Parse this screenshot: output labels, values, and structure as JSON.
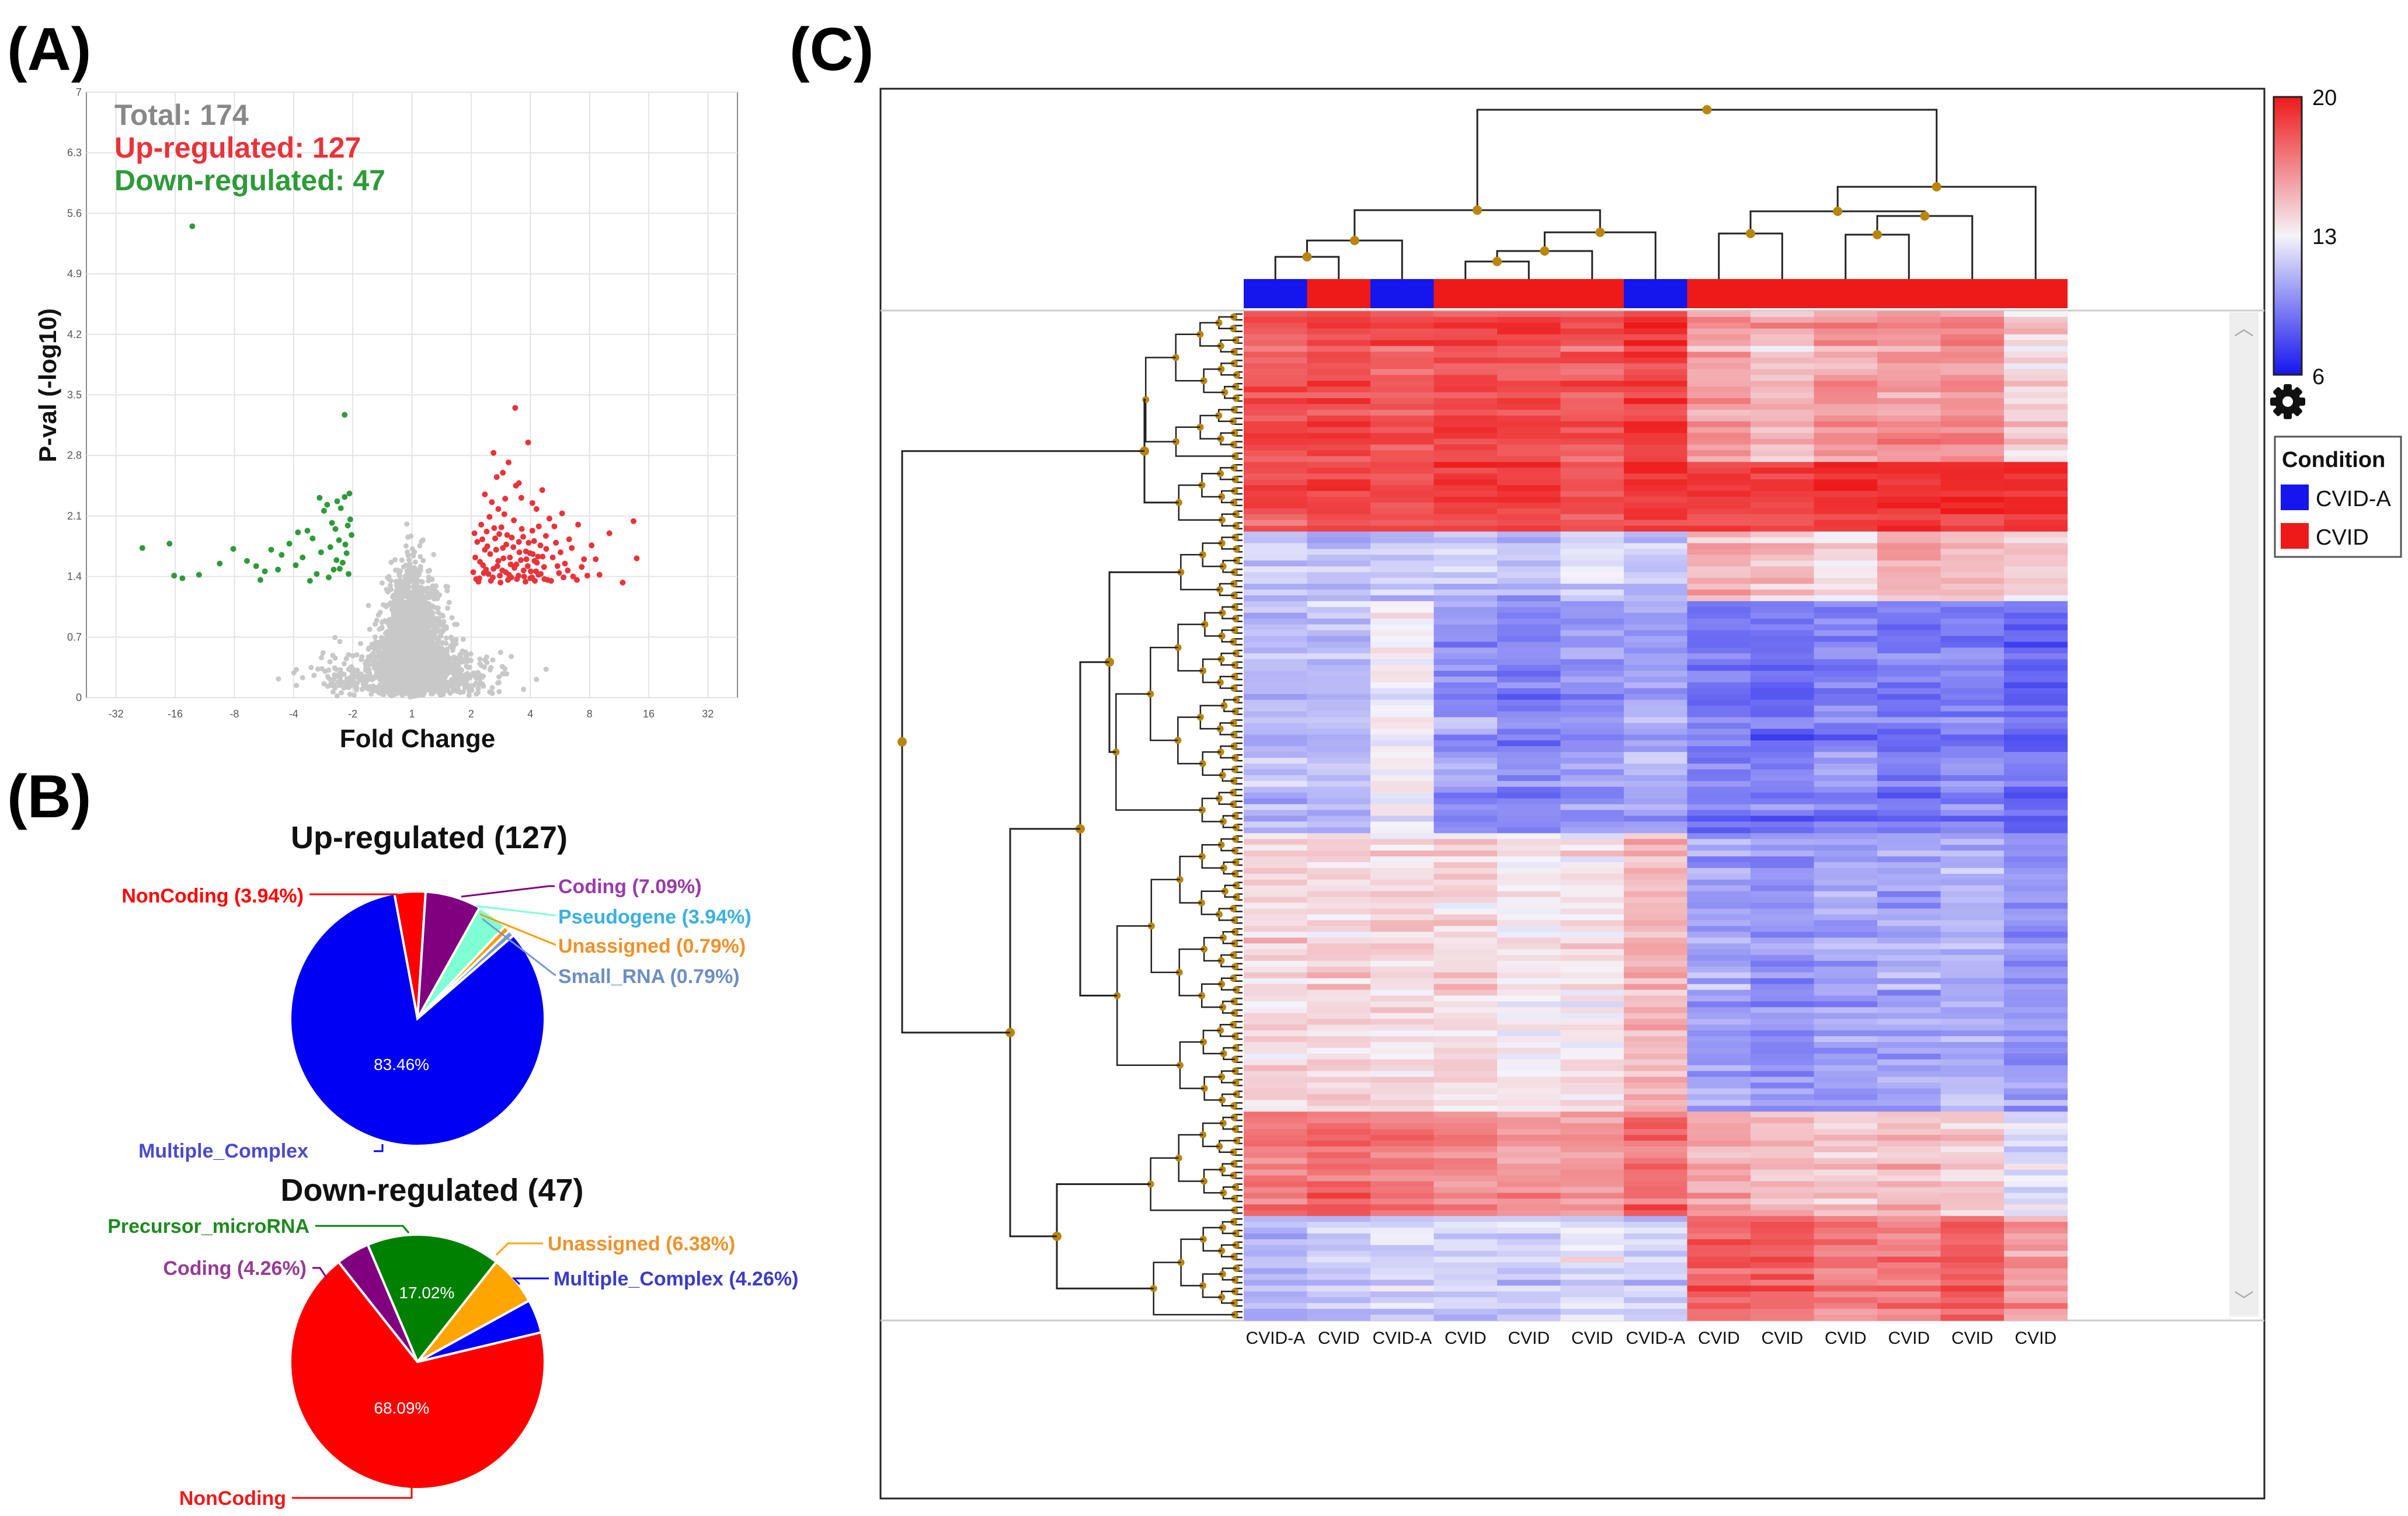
{
  "colors": {
    "up": "#e8333a",
    "down": "#2f9a3a",
    "grey": "#c8c8c8",
    "total": "#888888",
    "hmBlue": "#1515ee",
    "hmWhite": "#f4f4fa",
    "hmRed": "#ee1a1a",
    "node": "#b8860b"
  },
  "panels": {
    "a": "(A)",
    "b": "(B)",
    "c": "(C)"
  },
  "chart_data": [
    {
      "id": "volcano",
      "type": "scatter",
      "title": "",
      "xlabel": "Fold Change",
      "ylabel": "P-val (-log10)",
      "xticks": [
        "-32",
        "-16",
        "-8",
        "-4",
        "-2",
        "1",
        "2",
        "4",
        "8",
        "16",
        "32"
      ],
      "yticks": [
        "0",
        "0.7",
        "1.4",
        "2.1",
        "2.8",
        "3.5",
        "4.2",
        "4.9",
        "5.6",
        "6.3",
        "7"
      ],
      "ylim": [
        0,
        7
      ],
      "annotations": {
        "total": "Total: 174",
        "up": "Up-regulated: 127",
        "down": "Down-regulated: 47"
      },
      "down_points": [
        [
          -23.5,
          1.73
        ],
        [
          -17.1,
          1.78
        ],
        [
          -16.2,
          1.41
        ],
        [
          -14.7,
          1.38
        ],
        [
          -12.1,
          1.42
        ],
        [
          -13.1,
          5.45
        ],
        [
          -8.1,
          1.72
        ],
        [
          -6.9,
          1.58
        ],
        [
          -6.2,
          1.52
        ],
        [
          -5.6,
          1.46
        ],
        [
          -5.2,
          1.71
        ],
        [
          -4.6,
          1.65
        ],
        [
          -4.2,
          1.78
        ],
        [
          -3.9,
          1.53
        ],
        [
          -3.6,
          1.62
        ],
        [
          -3.4,
          1.93
        ],
        [
          -3.2,
          1.84
        ],
        [
          -3.05,
          1.43
        ],
        [
          -2.9,
          1.68
        ],
        [
          -2.8,
          2.16
        ],
        [
          -2.7,
          2.23
        ],
        [
          -2.6,
          1.74
        ],
        [
          -2.5,
          1.48
        ],
        [
          -2.45,
          1.95
        ],
        [
          -2.4,
          2.27
        ],
        [
          -2.35,
          1.82
        ],
        [
          -2.3,
          2.19
        ],
        [
          -2.25,
          1.56
        ],
        [
          -2.2,
          2.32
        ],
        [
          -2.15,
          1.67
        ],
        [
          -2.1,
          1.43
        ],
        [
          -2.06,
          2.06
        ],
        [
          -2.03,
          1.88
        ],
        [
          -2.2,
          3.27
        ],
        [
          -3.3,
          1.35
        ],
        [
          -5.9,
          1.36
        ],
        [
          -4.8,
          1.48
        ],
        [
          -3.8,
          1.91
        ],
        [
          -2.95,
          2.31
        ],
        [
          -2.55,
          2.02
        ],
        [
          -2.42,
          1.59
        ],
        [
          -2.33,
          1.49
        ],
        [
          -2.18,
          1.77
        ],
        [
          -2.12,
          1.99
        ],
        [
          -2.08,
          2.36
        ],
        [
          -9.5,
          1.55
        ],
        [
          -2.65,
          1.39
        ]
      ],
      "up_points": [
        [
          2.05,
          1.45
        ],
        [
          2.1,
          1.62
        ],
        [
          2.15,
          1.8
        ],
        [
          2.2,
          1.38
        ],
        [
          2.25,
          2.0
        ],
        [
          2.3,
          1.53
        ],
        [
          2.35,
          1.71
        ],
        [
          2.4,
          1.92
        ],
        [
          2.45,
          1.43
        ],
        [
          2.5,
          1.66
        ],
        [
          2.55,
          2.26
        ],
        [
          2.6,
          1.49
        ],
        [
          2.65,
          1.84
        ],
        [
          2.7,
          2.55
        ],
        [
          2.75,
          1.58
        ],
        [
          2.8,
          1.41
        ],
        [
          2.85,
          1.97
        ],
        [
          2.9,
          1.73
        ],
        [
          2.95,
          2.12
        ],
        [
          3.0,
          1.45
        ],
        [
          3.05,
          1.88
        ],
        [
          3.1,
          2.72
        ],
        [
          3.15,
          1.62
        ],
        [
          3.2,
          1.39
        ],
        [
          3.3,
          2.05
        ],
        [
          3.4,
          1.54
        ],
        [
          3.5,
          1.8
        ],
        [
          3.6,
          2.31
        ],
        [
          3.7,
          1.47
        ],
        [
          3.8,
          1.69
        ],
        [
          3.9,
          2.95
        ],
        [
          4.0,
          1.38
        ],
        [
          4.1,
          1.93
        ],
        [
          4.2,
          1.58
        ],
        [
          4.3,
          2.18
        ],
        [
          4.4,
          1.42
        ],
        [
          4.5,
          1.76
        ],
        [
          4.6,
          2.4
        ],
        [
          4.7,
          1.51
        ],
        [
          4.8,
          1.87
        ],
        [
          4.9,
          1.36
        ],
        [
          5.0,
          2.07
        ],
        [
          5.2,
          1.62
        ],
        [
          5.4,
          1.79
        ],
        [
          5.6,
          1.44
        ],
        [
          5.8,
          2.13
        ],
        [
          6.0,
          1.55
        ],
        [
          6.3,
          1.83
        ],
        [
          6.6,
          1.4
        ],
        [
          7.0,
          2.0
        ],
        [
          7.5,
          1.6
        ],
        [
          8.2,
          1.76
        ],
        [
          9.0,
          1.42
        ],
        [
          10.1,
          1.9
        ],
        [
          11.8,
          1.33
        ],
        [
          13.4,
          2.04
        ],
        [
          13.9,
          1.61
        ],
        [
          3.35,
          3.35
        ],
        [
          2.12,
          1.37
        ],
        [
          2.22,
          1.57
        ],
        [
          2.32,
          1.44
        ],
        [
          2.42,
          1.75
        ],
        [
          2.52,
          1.35
        ],
        [
          2.62,
          1.96
        ],
        [
          2.72,
          1.52
        ],
        [
          2.82,
          1.33
        ],
        [
          2.92,
          1.61
        ],
        [
          3.02,
          1.77
        ],
        [
          3.12,
          1.42
        ],
        [
          3.22,
          1.85
        ],
        [
          3.32,
          1.5
        ],
        [
          3.42,
          1.37
        ],
        [
          3.52,
          1.68
        ],
        [
          3.62,
          1.95
        ],
        [
          3.72,
          1.4
        ],
        [
          3.82,
          1.6
        ],
        [
          3.92,
          1.79
        ],
        [
          4.02,
          1.46
        ],
        [
          4.12,
          1.66
        ],
        [
          4.22,
          1.35
        ],
        [
          4.32,
          1.56
        ],
        [
          4.42,
          1.98
        ],
        [
          4.52,
          1.43
        ],
        [
          4.62,
          1.63
        ],
        [
          4.72,
          1.37
        ],
        [
          4.82,
          1.72
        ],
        [
          2.08,
          1.9
        ],
        [
          2.18,
          1.34
        ],
        [
          2.28,
          1.83
        ],
        [
          2.38,
          1.48
        ],
        [
          2.48,
          2.09
        ],
        [
          2.58,
          1.39
        ],
        [
          2.68,
          1.71
        ],
        [
          2.78,
          1.89
        ],
        [
          2.88,
          1.47
        ],
        [
          2.98,
          2.3
        ],
        [
          3.08,
          1.36
        ],
        [
          3.18,
          1.54
        ],
        [
          3.28,
          1.74
        ],
        [
          3.38,
          2.45
        ],
        [
          3.48,
          1.41
        ],
        [
          3.58,
          1.59
        ],
        [
          3.68,
          1.86
        ],
        [
          3.78,
          1.34
        ],
        [
          3.88,
          1.52
        ],
        [
          3.98,
          1.67
        ],
        [
          4.08,
          1.39
        ],
        [
          4.18,
          1.81
        ],
        [
          4.28,
          1.46
        ],
        [
          4.38,
          1.63
        ],
        [
          5.1,
          1.35
        ],
        [
          5.3,
          1.98
        ],
        [
          5.5,
          1.52
        ],
        [
          5.7,
          1.68
        ],
        [
          5.9,
          1.39
        ],
        [
          6.2,
          1.47
        ],
        [
          6.5,
          1.73
        ],
        [
          6.9,
          1.36
        ],
        [
          7.3,
          1.51
        ],
        [
          7.8,
          1.41
        ],
        [
          8.6,
          1.6
        ],
        [
          2.6,
          2.83
        ],
        [
          2.9,
          2.6
        ],
        [
          3.5,
          2.48
        ],
        [
          4.1,
          2.25
        ],
        [
          2.35,
          2.35
        ],
        [
          2.75,
          2.18
        ]
      ]
    },
    {
      "id": "pie-up",
      "type": "pie",
      "title": "Up-regulated (127)",
      "slices": [
        {
          "label": "Multiple_Complex",
          "value": 83.46,
          "color": "#0000f2",
          "pct_text": "83.46%"
        },
        {
          "label": "NonCoding (3.94%)",
          "value": 3.94,
          "color": "#ff0000"
        },
        {
          "label": "Coding (7.09%)",
          "value": 7.09,
          "color": "#800080"
        },
        {
          "label": "Pseudogene (3.94%)",
          "value": 3.94,
          "color": "#7fffd4"
        },
        {
          "label": "Unassigned (0.79%)",
          "value": 0.79,
          "color": "#ff9900"
        },
        {
          "label": "Small_RNA (0.79%)",
          "value": 0.79,
          "color": "#7799cc"
        }
      ]
    },
    {
      "id": "pie-down",
      "type": "pie",
      "title": "Down-regulated (47)",
      "slices": [
        {
          "label": "NonCoding",
          "value": 68.09,
          "color": "#ff0000",
          "pct_text": "68.09%"
        },
        {
          "label": "Coding (4.26%)",
          "value": 4.26,
          "color": "#800080"
        },
        {
          "label": "Precursor_microRNA",
          "value": 17.02,
          "color": "#008000",
          "pct_text": "17.02%"
        },
        {
          "label": "Unassigned (6.38%)",
          "value": 6.38,
          "color": "#ffa500"
        },
        {
          "label": "Multiple_Complex (4.26%)",
          "value": 4.26,
          "color": "#0000ff"
        }
      ]
    },
    {
      "id": "heatmap",
      "type": "heatmap",
      "title": "",
      "columns": [
        "CVID-A",
        "CVID",
        "CVID-A",
        "CVID",
        "CVID",
        "CVID",
        "CVID-A",
        "CVID",
        "CVID",
        "CVID",
        "CVID",
        "CVID",
        "CVID"
      ],
      "column_condition": [
        "CVID-A",
        "CVID",
        "CVID-A",
        "CVID",
        "CVID",
        "CVID",
        "CVID-A",
        "CVID",
        "CVID",
        "CVID",
        "CVID",
        "CVID",
        "CVID"
      ],
      "row_count": 174,
      "row_blocks": [
        {
          "rows": 26,
          "profile": [
            18,
            18.5,
            18,
            18.5,
            18.5,
            18,
            19,
            16,
            15,
            16,
            16,
            16.5,
            14
          ],
          "order": 0
        },
        {
          "rows": 12,
          "profile": [
            18.5,
            19,
            18.5,
            19,
            19,
            18.5,
            19,
            19,
            19,
            19.5,
            19.5,
            19.5,
            19.5
          ],
          "order": 1
        },
        {
          "rows": 12,
          "profile": [
            11.5,
            11,
            11.5,
            11.5,
            11,
            12,
            11,
            15,
            14.5,
            13.5,
            15,
            14.5,
            14
          ],
          "order": 2
        },
        {
          "rows": 40,
          "profile": [
            11,
            11,
            13,
            10,
            9.5,
            10,
            10.5,
            9,
            9,
            9.5,
            9,
            9.5,
            8.5
          ],
          "order": 3
        },
        {
          "rows": 48,
          "profile": [
            14,
            14,
            14,
            14,
            13.5,
            13.5,
            15,
            10.5,
            10,
            10.5,
            10.5,
            11,
            10
          ],
          "order": 4
        },
        {
          "rows": 18,
          "profile": [
            17,
            17.5,
            17,
            16.5,
            16,
            16,
            17.5,
            15.5,
            15,
            14.5,
            15,
            14.5,
            12.5
          ],
          "order": 5
        },
        {
          "rows": 18,
          "profile": [
            11,
            11.5,
            12,
            12,
            12,
            12.5,
            12,
            18,
            18,
            17,
            17,
            18,
            16
          ],
          "order": 6
        }
      ],
      "scale": {
        "min": 6,
        "mid": 13,
        "max": 20,
        "labels": [
          "20",
          "13",
          "6"
        ]
      },
      "legend_title": "Condition",
      "legend_items": [
        {
          "label": "CVID-A",
          "color": "#1515ee"
        },
        {
          "label": "CVID",
          "color": "#ee1a1a"
        }
      ]
    }
  ]
}
